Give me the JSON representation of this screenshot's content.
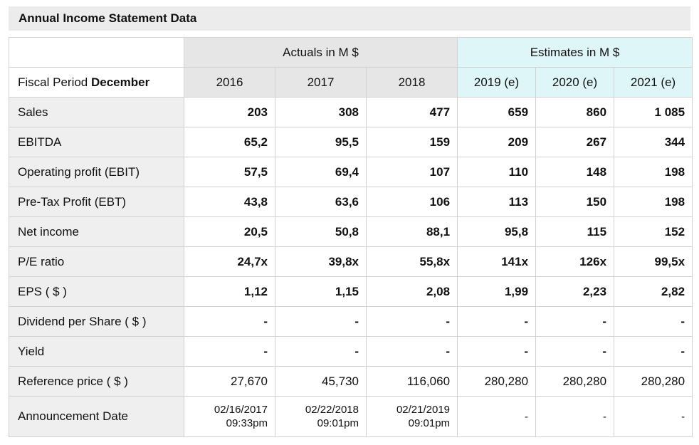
{
  "panel": {
    "title": "Annual Income Statement Data"
  },
  "header": {
    "fiscal_label": "Fiscal Period",
    "fiscal_month": "December",
    "actuals_label": "Actuals in M $",
    "estimates_label": "Estimates in M $",
    "years": [
      "2016",
      "2017",
      "2018",
      "2019 (e)",
      "2020 (e)",
      "2021 (e)"
    ]
  },
  "rows": [
    {
      "label": "Sales",
      "values": [
        "203",
        "308",
        "477",
        "659",
        "860",
        "1 085"
      ]
    },
    {
      "label": "EBITDA",
      "values": [
        "65,2",
        "95,5",
        "159",
        "209",
        "267",
        "344"
      ]
    },
    {
      "label": "Operating profit (EBIT)",
      "values": [
        "57,5",
        "69,4",
        "107",
        "110",
        "148",
        "198"
      ]
    },
    {
      "label": "Pre-Tax Profit (EBT)",
      "values": [
        "43,8",
        "63,6",
        "106",
        "113",
        "150",
        "198"
      ]
    },
    {
      "label": "Net income",
      "values": [
        "20,5",
        "50,8",
        "88,1",
        "95,8",
        "115",
        "152"
      ]
    },
    {
      "label": "P/E ratio",
      "values": [
        "24,7x",
        "39,8x",
        "55,8x",
        "141x",
        "126x",
        "99,5x"
      ]
    },
    {
      "label": "EPS ( $ )",
      "values": [
        "1,12",
        "1,15",
        "2,08",
        "1,99",
        "2,23",
        "2,82"
      ]
    },
    {
      "label": "Dividend per Share ( $ )",
      "values": [
        "-",
        "-",
        "-",
        "-",
        "-",
        "-"
      ]
    },
    {
      "label": "Yield",
      "values": [
        "-",
        "-",
        "-",
        "-",
        "-",
        "-"
      ]
    },
    {
      "label": "Reference price ( $ )",
      "values": [
        "27,670",
        "45,730",
        "116,060",
        "280,280",
        "280,280",
        "280,280"
      ]
    }
  ],
  "announcement": {
    "label": "Announcement Date",
    "values": [
      {
        "date": "02/16/2017",
        "time": "09:33pm"
      },
      {
        "date": "02/22/2018",
        "time": "09:01pm"
      },
      {
        "date": "02/21/2019",
        "time": "09:01pm"
      },
      {
        "date": "-",
        "time": ""
      },
      {
        "date": "-",
        "time": ""
      },
      {
        "date": "-",
        "time": ""
      }
    ]
  }
}
